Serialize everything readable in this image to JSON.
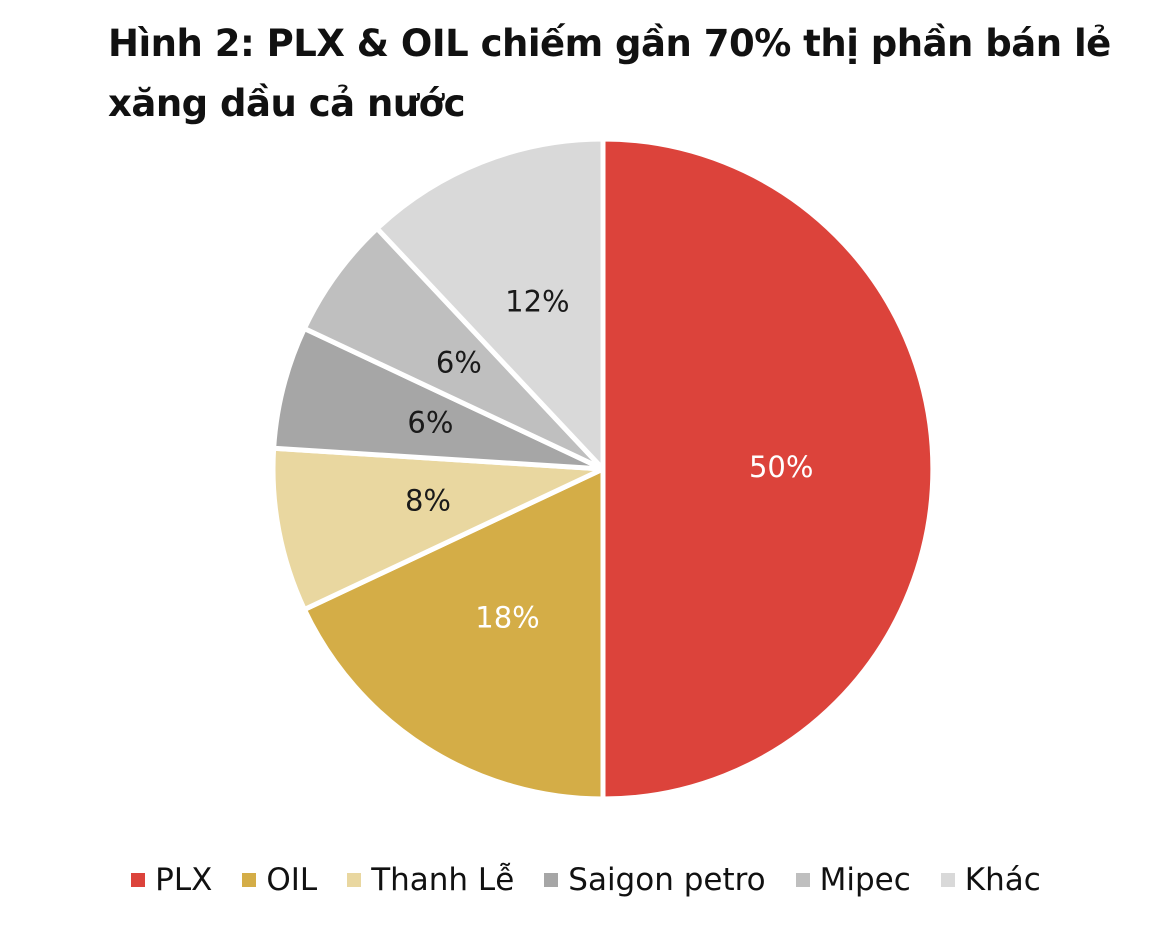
{
  "chart_data": {
    "type": "pie",
    "title": "Hình 2: PLX & OIL chiếm gần 70% thị phần bán lẻ xăng dầu cả nước",
    "categories": [
      "PLX",
      "OIL",
      "Thanh Lễ",
      "Saigon petro",
      "Mipec",
      "Khác"
    ],
    "values": [
      50,
      18,
      8,
      6,
      6,
      12
    ],
    "value_labels": [
      "50%",
      "18%",
      "8%",
      "6%",
      "6%",
      "12%"
    ],
    "colors": [
      "#dc433b",
      "#d4ad47",
      "#e9d7a0",
      "#a6a6a6",
      "#bfbfbf",
      "#d9d9d9"
    ],
    "label_colors": [
      "#ffffff",
      "#ffffff",
      "#1a1a1a",
      "#1a1a1a",
      "#1a1a1a",
      "#1a1a1a"
    ],
    "legend": "bottom"
  }
}
